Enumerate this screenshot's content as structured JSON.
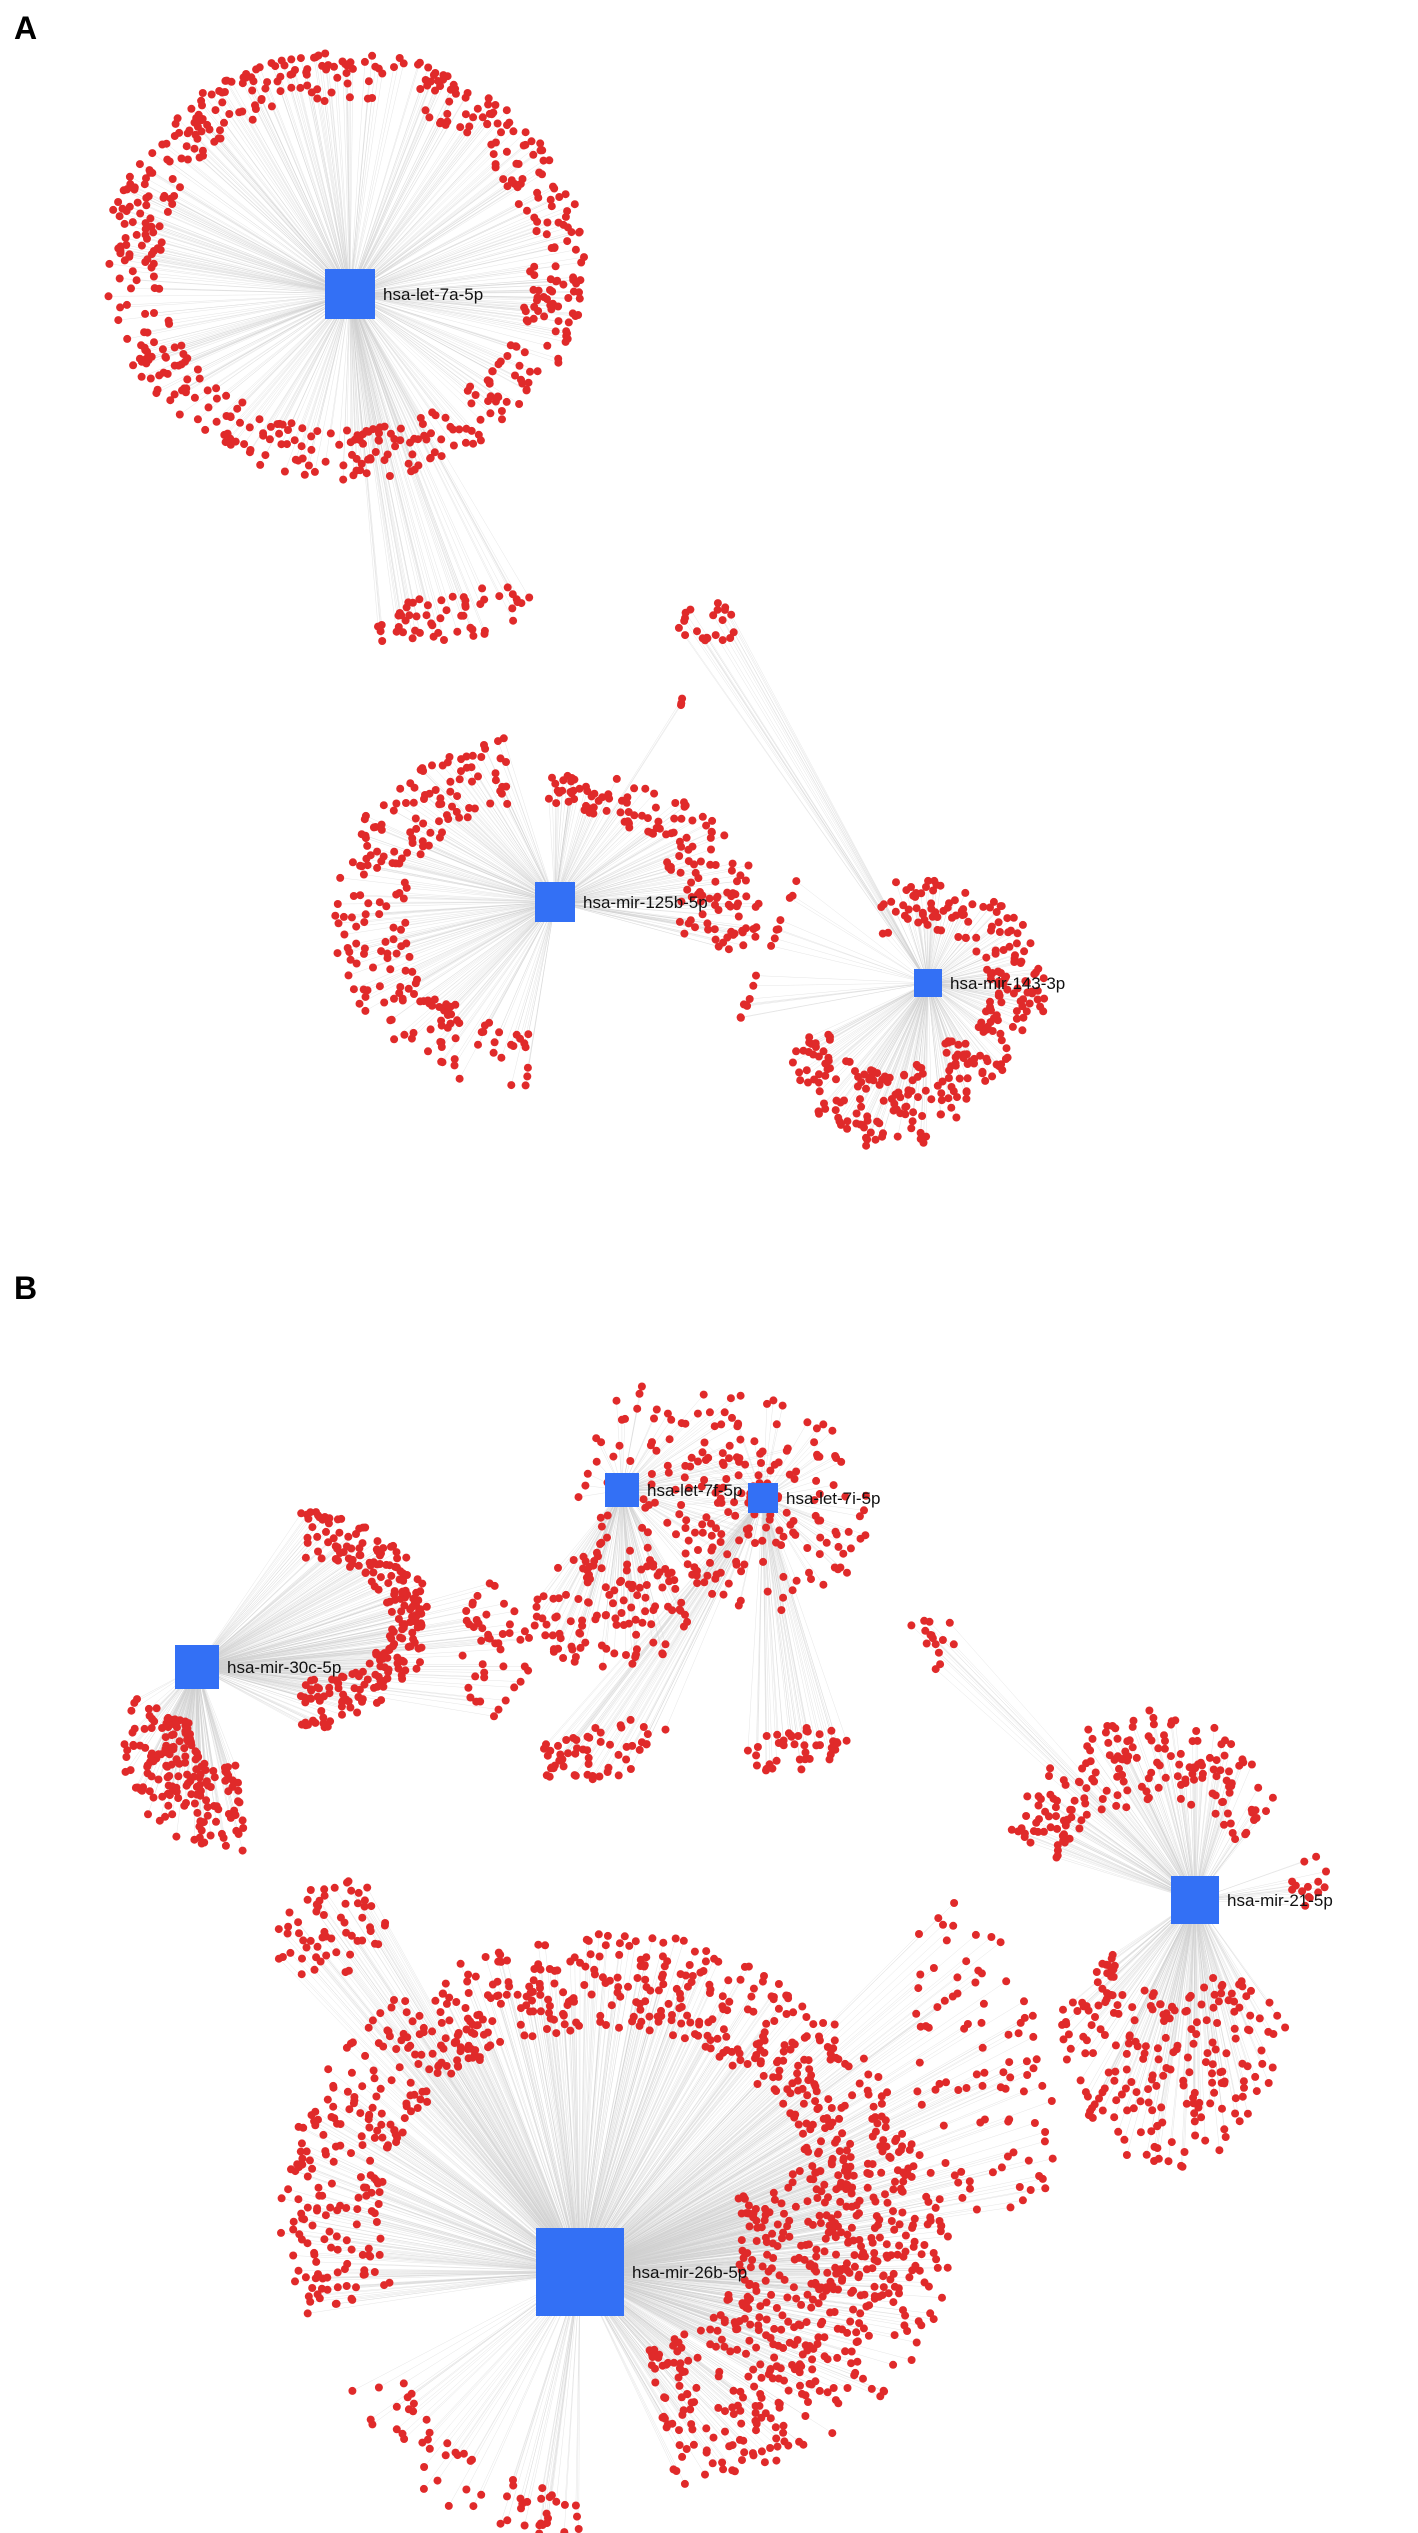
{
  "panels": [
    {
      "letter": "A",
      "hubs": [
        {
          "id": "let7a",
          "label": "hsa-let-7a-5p"
        },
        {
          "id": "mir125b",
          "label": "hsa-mir-125b-5p"
        },
        {
          "id": "mir143",
          "label": "hsa-mir-143-3p"
        }
      ]
    },
    {
      "letter": "B",
      "hubs": [
        {
          "id": "let7f",
          "label": "hsa-let-7f-5p"
        },
        {
          "id": "let7i",
          "label": "hsa-let-7i-5p"
        },
        {
          "id": "mir30c",
          "label": "hsa-mir-30c-5p"
        },
        {
          "id": "mir21",
          "label": "hsa-mir-21-5p"
        },
        {
          "id": "mir26b",
          "label": "hsa-mir-26b-5p"
        }
      ]
    }
  ],
  "colors": {
    "hub": "#3370f5",
    "target": "#e02a2a",
    "edge": "#cfcfcf"
  }
}
